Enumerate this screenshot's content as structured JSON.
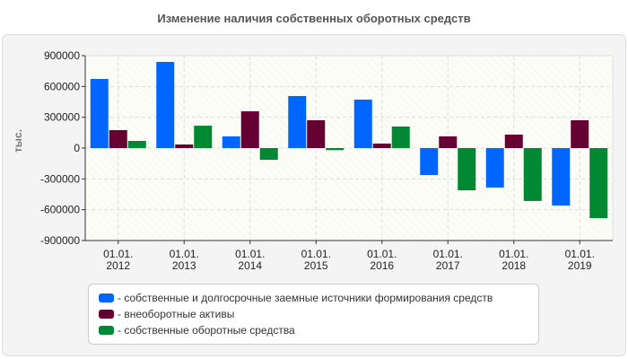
{
  "chart_data": {
    "type": "bar",
    "title": "Изменение наличия собственных оборотных средств",
    "xlabel": "",
    "ylabel": "тыс.",
    "ylim": [
      -900000,
      900000
    ],
    "yticks": [
      "900000",
      "600000",
      "300000",
      "0",
      "-300000",
      "-600000",
      "-900000"
    ],
    "ytick_values": [
      900000,
      600000,
      300000,
      0,
      -300000,
      -600000,
      -900000
    ],
    "categories": [
      [
        "01.01.",
        "2012"
      ],
      [
        "01.01.",
        "2013"
      ],
      [
        "01.01.",
        "2014"
      ],
      [
        "01.01.",
        "2015"
      ],
      [
        "01.01.",
        "2016"
      ],
      [
        "01.01.",
        "2017"
      ],
      [
        "01.01.",
        "2018"
      ],
      [
        "01.01.",
        "2019"
      ]
    ],
    "grid": true,
    "legend_position": "bottom",
    "series": [
      {
        "name": "- собственные и долгосрочные заемные источники формирования средств",
        "color": "#0066ff",
        "values": [
          673000,
          839000,
          114000,
          507000,
          472000,
          -262000,
          -384000,
          -559000
        ]
      },
      {
        "name": "- внеоборотные активы",
        "color": "#660033",
        "values": [
          175000,
          35000,
          358000,
          271000,
          44000,
          114000,
          131000,
          271000
        ]
      },
      {
        "name": "- собственные оборотные средства",
        "color": "#008833",
        "values": [
          70000,
          218000,
          -114000,
          -20000,
          210000,
          -411000,
          -515000,
          -682000
        ]
      }
    ]
  }
}
